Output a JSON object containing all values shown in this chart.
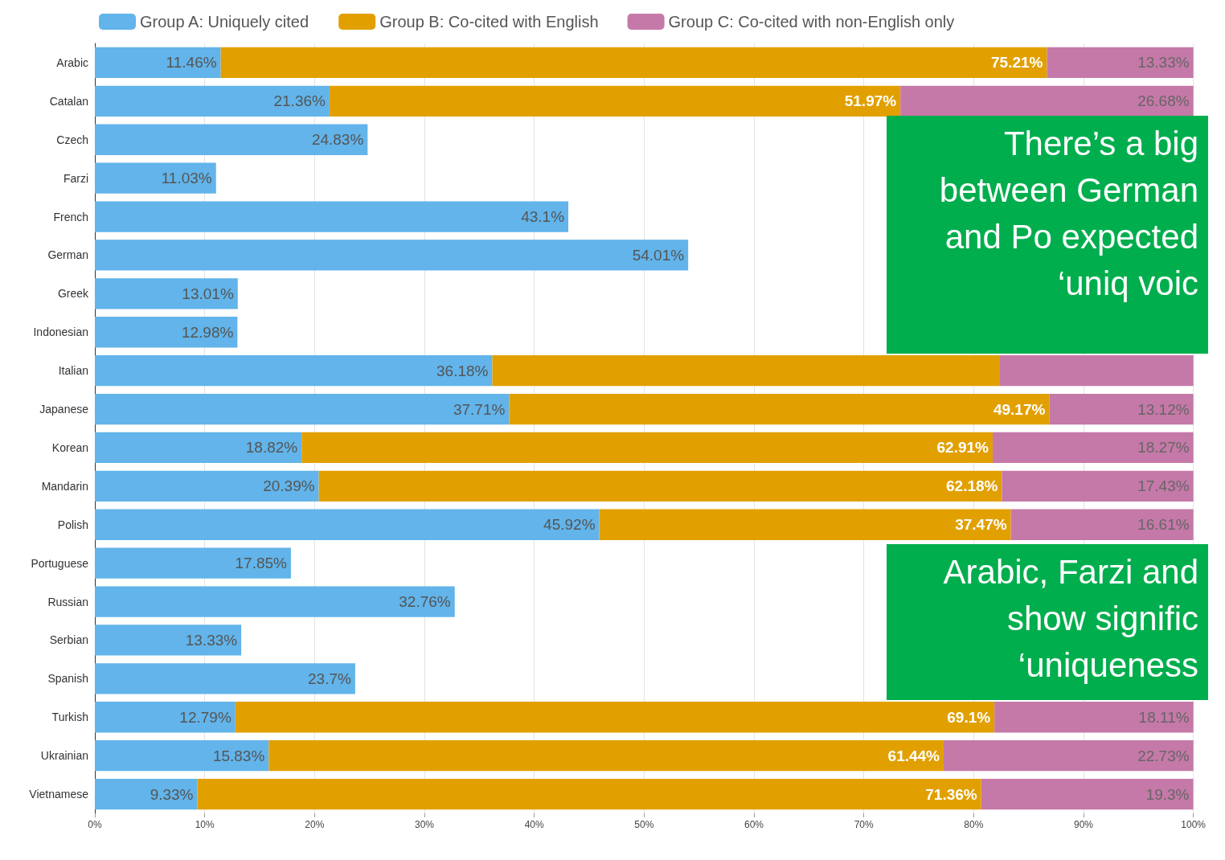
{
  "chart_data": {
    "type": "bar",
    "orientation": "horizontal",
    "stacked": true,
    "legend": "top left",
    "grid": "x",
    "categories": [
      "Arabic",
      "Catalan",
      "Czech",
      "Farzi",
      "French",
      "German",
      "Greek",
      "Indonesian",
      "Italian",
      "Japanese",
      "Korean",
      "Mandarin",
      "Polish",
      "Portuguese",
      "Russian",
      "Serbian",
      "Spanish",
      "Turkish",
      "Ukrainian",
      "Vietnamese"
    ],
    "xlim": [
      0,
      100
    ],
    "xticks": [
      {
        "value": 0,
        "label": "0%"
      },
      {
        "value": 10,
        "label": "10%"
      },
      {
        "value": 20,
        "label": "20%"
      },
      {
        "value": 30,
        "label": "30%"
      },
      {
        "value": 40,
        "label": "40%"
      },
      {
        "value": 50,
        "label": "50%"
      },
      {
        "value": 60,
        "label": "60%"
      },
      {
        "value": 70,
        "label": "70%"
      },
      {
        "value": 80,
        "label": "80%"
      },
      {
        "value": 90,
        "label": "90%"
      },
      {
        "value": 100,
        "label": "100%"
      }
    ],
    "series": [
      {
        "name": "Group A: Uniquely cited",
        "color": "#62b4ea",
        "values": [
          11.46,
          21.36,
          24.83,
          11.03,
          43.1,
          54.01,
          13.01,
          12.98,
          36.18,
          37.71,
          18.82,
          20.39,
          45.92,
          17.85,
          32.76,
          13.33,
          23.7,
          12.79,
          15.83,
          9.33
        ],
        "value_labels": [
          "11.46%",
          "21.36%",
          "24.83%",
          "11.03%",
          "43.1%",
          "54.01%",
          "13.01%",
          "12.98%",
          "36.18%",
          "37.71%",
          "18.82%",
          "20.39%",
          "45.92%",
          "17.85%",
          "32.76%",
          "13.33%",
          "23.7%",
          "12.79%",
          "15.83%",
          "9.33%"
        ]
      },
      {
        "name": "Group B: Co-cited with English",
        "color": "#e1a000",
        "values": [
          75.21,
          51.97,
          null,
          null,
          null,
          null,
          null,
          null,
          46.21,
          49.17,
          62.91,
          62.18,
          37.47,
          null,
          null,
          null,
          null,
          69.1,
          61.44,
          71.36
        ],
        "value_labels": [
          "75.21%",
          "51.97%",
          null,
          null,
          null,
          null,
          null,
          null,
          null,
          "49.17%",
          "62.91%",
          "62.18%",
          "37.47%",
          null,
          null,
          null,
          null,
          "69.1%",
          "61.44%",
          "71.36%"
        ]
      },
      {
        "name": "Group C: Co-cited with non-English only",
        "color": "#c579a8",
        "values": [
          13.33,
          26.68,
          null,
          null,
          null,
          null,
          null,
          null,
          17.61,
          13.12,
          18.27,
          17.43,
          16.61,
          null,
          null,
          null,
          null,
          18.11,
          22.73,
          19.3
        ],
        "value_labels": [
          "13.33%",
          "26.68%",
          null,
          null,
          null,
          null,
          null,
          null,
          null,
          "13.12%",
          "18.27%",
          "17.43%",
          "16.61%",
          null,
          null,
          null,
          null,
          "18.11%",
          "22.73%",
          "19.3%"
        ]
      }
    ],
    "annotations": [
      "There’s a big between German and Po expected ‘uniq voic",
      "Arabic, Farzi and show signific ‘uniqueness"
    ]
  }
}
